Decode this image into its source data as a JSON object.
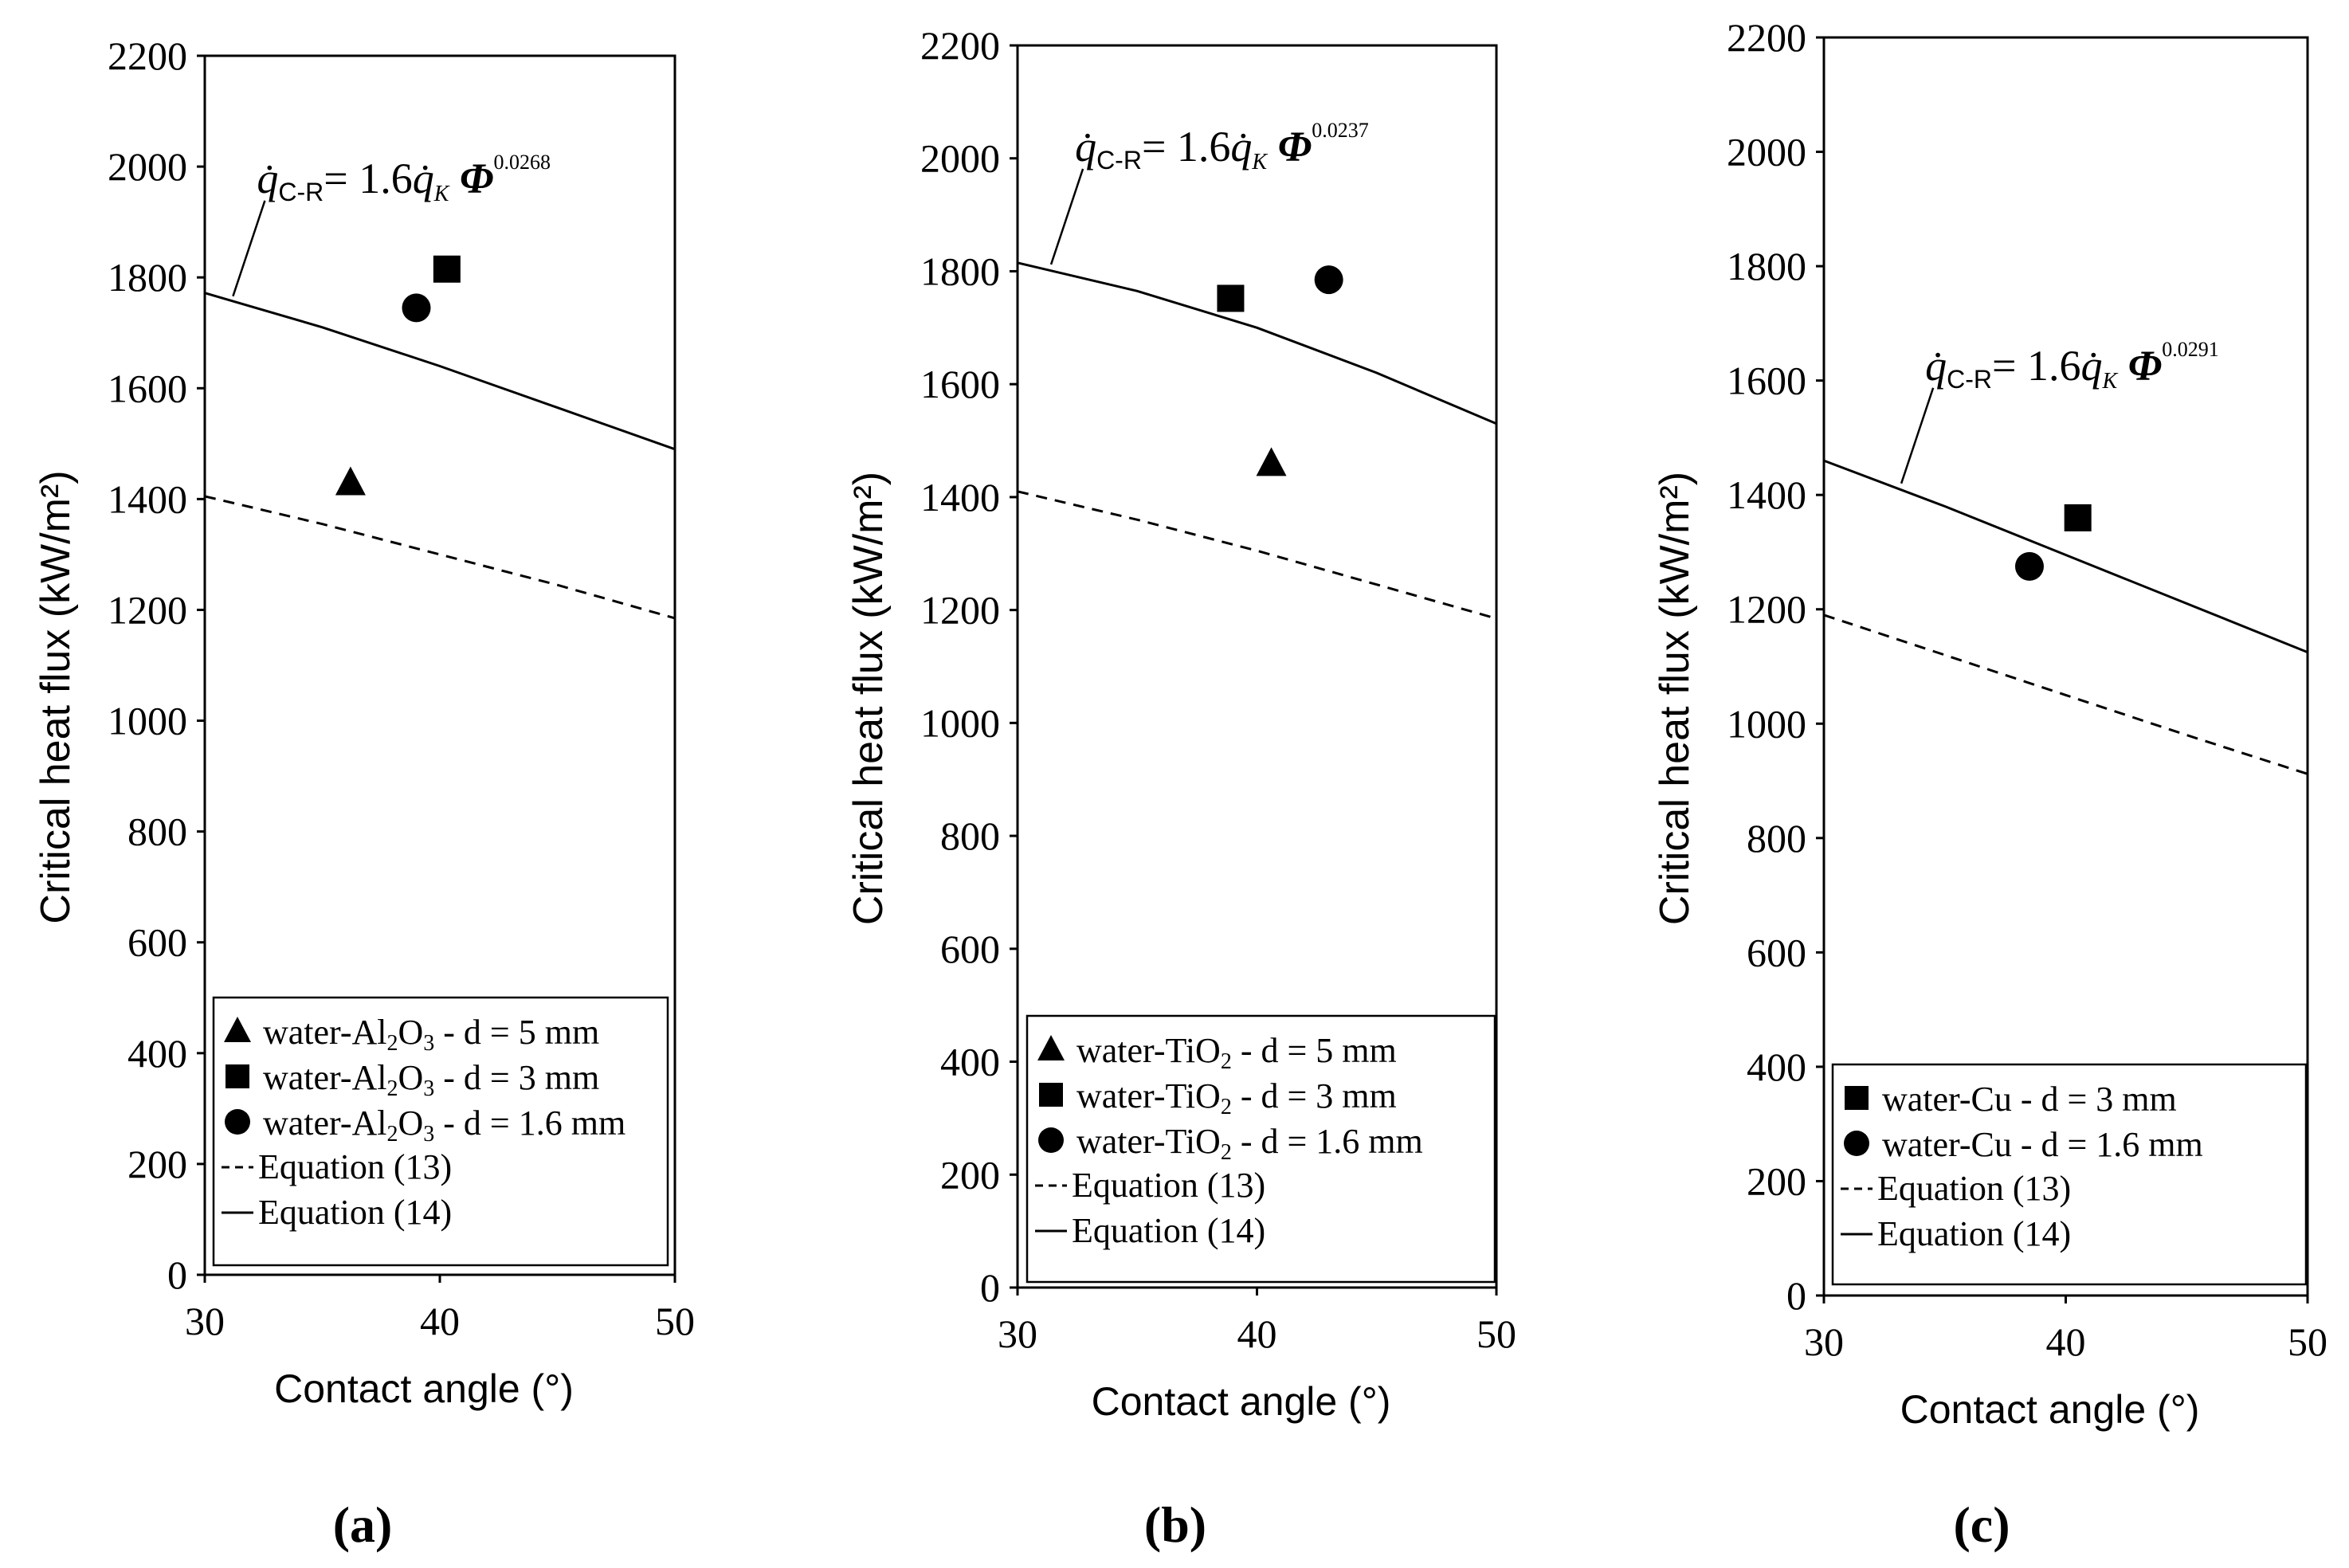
{
  "figure": {
    "panel_labels": [
      "(a)",
      "(b)",
      "(c)"
    ]
  },
  "chart_data": [
    {
      "type": "scatter",
      "panel": "(a)",
      "xlabel": "Contact angle (°)",
      "ylabel": "Critical heat flux (kW/m²)",
      "xlim": [
        30,
        50
      ],
      "ylim": [
        0,
        2200
      ],
      "x_ticks": [
        30,
        40,
        50
      ],
      "y_ticks": [
        0,
        200,
        400,
        600,
        800,
        1000,
        1200,
        1400,
        1600,
        1800,
        2000,
        2200
      ],
      "equation": {
        "lhs": "q̇",
        "lhs_sub": "C-R",
        "mid": "= 1.6",
        "rhs": "q̇",
        "rhs_sub": "K",
        "phi": "Φ",
        "exponent": "0.0268",
        "leader_x": 31.2,
        "leader_y": 1766
      },
      "series": [
        {
          "name": "water-Al₂O₃ - d = 5 mm",
          "label_prefix": "water-Al",
          "label_sub1": "2",
          "label_mid": "O",
          "label_sub2": "3",
          "label_suffix": " - d = 5 mm",
          "marker": "triangle",
          "points": [
            [
              36.2,
              1430
            ]
          ]
        },
        {
          "name": "water-Al₂O₃ - d = 3 mm",
          "label_prefix": "water-Al",
          "label_sub1": "2",
          "label_mid": "O",
          "label_sub2": "3",
          "label_suffix": " - d = 3 mm",
          "marker": "square",
          "points": [
            [
              40.3,
              1815
            ]
          ]
        },
        {
          "name": "water-Al₂O₃ - d = 1.6 mm",
          "label_prefix": "water-Al",
          "label_sub1": "2",
          "label_mid": "O",
          "label_sub2": "3",
          "label_suffix": " - d = 1.6 mm",
          "marker": "circle",
          "points": [
            [
              39.0,
              1745
            ]
          ]
        },
        {
          "name": "Equation (13)",
          "style": "dashed",
          "line": [
            [
              30,
              1405
            ],
            [
              35,
              1355
            ],
            [
              40,
              1300
            ],
            [
              45,
              1245
            ],
            [
              50,
              1185
            ]
          ]
        },
        {
          "name": "Equation (14)",
          "style": "solid",
          "line": [
            [
              30,
              1772
            ],
            [
              35,
              1710
            ],
            [
              40,
              1640
            ],
            [
              45,
              1565
            ],
            [
              50,
              1490
            ]
          ]
        }
      ]
    },
    {
      "type": "scatter",
      "panel": "(b)",
      "xlabel": "Contact angle (°)",
      "ylabel": "Critical heat flux (kW/m²)",
      "xlim": [
        30,
        50
      ],
      "ylim": [
        0,
        2200
      ],
      "x_ticks": [
        30,
        40,
        50
      ],
      "y_ticks": [
        0,
        200,
        400,
        600,
        800,
        1000,
        1200,
        1400,
        1600,
        1800,
        2000,
        2200
      ],
      "equation": {
        "lhs": "q̇",
        "lhs_sub": "C-R",
        "mid": "= 1.6",
        "rhs": "q̇",
        "rhs_sub": "K",
        "phi": "Φ",
        "exponent": "0.0237",
        "leader_x": 31.4,
        "leader_y": 1812
      },
      "series": [
        {
          "name": "water-TiO₂ - d = 5 mm",
          "label_prefix": "water-TiO",
          "label_sub1": "2",
          "label_mid": "",
          "label_sub2": "",
          "label_suffix": " - d = 5 mm",
          "marker": "triangle",
          "points": [
            [
              40.6,
              1460
            ]
          ]
        },
        {
          "name": "water-TiO₂ - d = 3 mm",
          "label_prefix": "water-TiO",
          "label_sub1": "2",
          "label_mid": "",
          "label_sub2": "",
          "label_suffix": " - d = 3 mm",
          "marker": "square",
          "points": [
            [
              38.9,
              1752
            ]
          ]
        },
        {
          "name": "water-TiO₂ - d = 1.6 mm",
          "label_prefix": "water-TiO",
          "label_sub1": "2",
          "label_mid": "",
          "label_sub2": "",
          "label_suffix": " - d = 1.6 mm",
          "marker": "circle",
          "points": [
            [
              43.0,
              1785
            ]
          ]
        },
        {
          "name": "Equation (13)",
          "style": "dashed",
          "line": [
            [
              30,
              1410
            ],
            [
              35,
              1360
            ],
            [
              40,
              1305
            ],
            [
              45,
              1245
            ],
            [
              50,
              1185
            ]
          ]
        },
        {
          "name": "Equation (14)",
          "style": "solid",
          "line": [
            [
              30,
              1815
            ],
            [
              35,
              1765
            ],
            [
              40,
              1700
            ],
            [
              45,
              1620
            ],
            [
              50,
              1530
            ]
          ]
        }
      ]
    },
    {
      "type": "scatter",
      "panel": "(c)",
      "xlabel": "Contact angle (°)",
      "ylabel": "Critical heat flux (kW/m²)",
      "xlim": [
        30,
        50
      ],
      "ylim": [
        0,
        2200
      ],
      "x_ticks": [
        30,
        40,
        50
      ],
      "y_ticks": [
        0,
        200,
        400,
        600,
        800,
        1000,
        1200,
        1400,
        1600,
        1800,
        2000,
        2200
      ],
      "equation": {
        "lhs": "q̇",
        "lhs_sub": "C-R",
        "mid": "= 1.6",
        "rhs": "q̇",
        "rhs_sub": "K",
        "phi": "Φ",
        "exponent": "0.0291",
        "leader_x": 33.2,
        "leader_y": 1420
      },
      "series": [
        {
          "name": "water-Cu - d = 3 mm",
          "label_prefix": "water-Cu",
          "label_sub1": "",
          "label_mid": "",
          "label_sub2": "",
          "label_suffix": " - d = 3 mm",
          "marker": "square",
          "points": [
            [
              40.5,
              1360
            ]
          ]
        },
        {
          "name": "water-Cu - d = 1.6 mm",
          "label_prefix": "water-Cu",
          "label_sub1": "",
          "label_mid": "",
          "label_sub2": "",
          "label_suffix": " - d = 1.6 mm",
          "marker": "circle",
          "points": [
            [
              38.5,
              1275
            ]
          ]
        },
        {
          "name": "Equation (13)",
          "style": "dashed",
          "line": [
            [
              30,
              1190
            ],
            [
              35,
              1120
            ],
            [
              40,
              1050
            ],
            [
              45,
              980
            ],
            [
              50,
              912
            ]
          ]
        },
        {
          "name": "Equation (14)",
          "style": "solid",
          "line": [
            [
              30,
              1460
            ],
            [
              35,
              1380
            ],
            [
              40,
              1295
            ],
            [
              45,
              1210
            ],
            [
              50,
              1125
            ]
          ]
        }
      ]
    }
  ]
}
